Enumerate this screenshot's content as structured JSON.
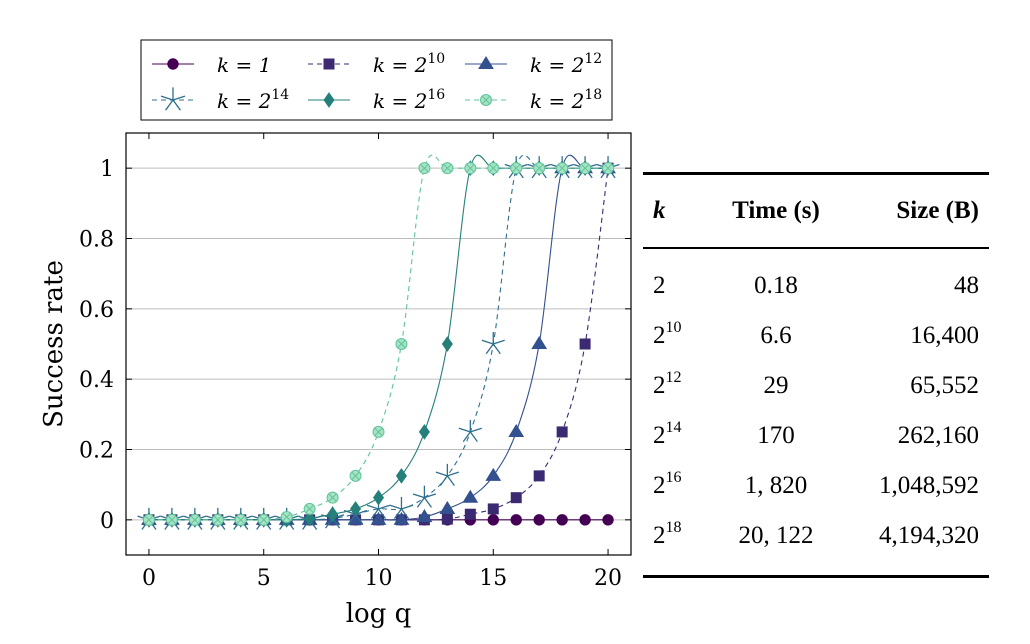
{
  "chart_data": {
    "type": "line",
    "title": "",
    "xlabel": "log q",
    "ylabel": "Success rate",
    "xlim": [
      -1,
      21
    ],
    "ylim": [
      -0.1,
      1.1
    ],
    "xticks": [
      0,
      5,
      10,
      15,
      20
    ],
    "yticks": [
      0,
      0.2,
      0.4,
      0.6,
      0.8,
      1
    ],
    "xtick_labels": [
      "0",
      "5",
      "10",
      "15",
      "20"
    ],
    "ytick_labels": [
      "0",
      "0.2",
      "0.4",
      "0.6",
      "0.8",
      "1"
    ],
    "grid": "horizontal",
    "legend_position": "above",
    "x": [
      0,
      1,
      2,
      3,
      4,
      5,
      6,
      7,
      8,
      9,
      10,
      11,
      12,
      13,
      14,
      15,
      16,
      17,
      18,
      19,
      20
    ],
    "series": [
      {
        "name": "k = 1",
        "base": "k = 1",
        "exp": "",
        "color": "#440154",
        "marker": "circle",
        "dashed": false,
        "values": [
          0,
          0,
          0,
          0,
          0,
          0,
          0,
          0,
          0,
          0,
          0,
          0,
          0,
          0,
          0,
          0,
          0,
          0,
          0,
          0,
          0
        ]
      },
      {
        "name": "k = 2^10",
        "base": "k = 2",
        "exp": "10",
        "color": "#3b2a72",
        "marker": "square",
        "dashed": true,
        "values": [
          0,
          0,
          0,
          0,
          0,
          0,
          0,
          0,
          0,
          0,
          0,
          0,
          0,
          0.002,
          0.016,
          0.031,
          0.063,
          0.125,
          0.25,
          0.5,
          1
        ]
      },
      {
        "name": "k = 2^12",
        "base": "k = 2",
        "exp": "12",
        "color": "#33508f",
        "marker": "triangle",
        "dashed": false,
        "values": [
          0,
          0,
          0,
          0,
          0,
          0,
          0,
          0,
          0,
          0,
          0,
          0,
          0.008,
          0.031,
          0.063,
          0.125,
          0.25,
          0.5,
          1,
          1,
          1
        ]
      },
      {
        "name": "k = 2^14",
        "base": "k = 2",
        "exp": "14",
        "color": "#2d6f8e",
        "marker": "star",
        "dashed": true,
        "values": [
          0,
          0,
          0,
          0,
          0,
          0,
          0,
          0,
          0.004,
          0.016,
          0.031,
          0.031,
          0.063,
          0.125,
          0.25,
          0.5,
          1,
          1,
          1,
          1,
          1
        ]
      },
      {
        "name": "k = 2^16",
        "base": "k = 2",
        "exp": "16",
        "color": "#25807a",
        "marker": "diamond",
        "dashed": false,
        "values": [
          0,
          0,
          0,
          0,
          0,
          0,
          0,
          0.004,
          0.016,
          0.031,
          0.063,
          0.125,
          0.25,
          0.5,
          1,
          1,
          1,
          1,
          1,
          1,
          1
        ]
      },
      {
        "name": "k = 2^18",
        "base": "k = 2",
        "exp": "18",
        "color": "#5ec49a",
        "marker": "circle-x",
        "dashed": true,
        "values": [
          0,
          0,
          0,
          0,
          0,
          0,
          0.008,
          0.031,
          0.063,
          0.125,
          0.25,
          0.5,
          1,
          1,
          1,
          1,
          1,
          1,
          1,
          1,
          1
        ]
      }
    ]
  },
  "table": {
    "headers": {
      "k": "k",
      "time": "Time (s)",
      "size": "Size (B)"
    },
    "rows": [
      {
        "k_base": "2",
        "k_exp": "",
        "time": "0.18",
        "size": "48"
      },
      {
        "k_base": "2",
        "k_exp": "10",
        "time": "6.6",
        "size": "16,400"
      },
      {
        "k_base": "2",
        "k_exp": "12",
        "time": "29",
        "size": "65,552"
      },
      {
        "k_base": "2",
        "k_exp": "14",
        "time": "170",
        "size": "262,160"
      },
      {
        "k_base": "2",
        "k_exp": "16",
        "time": "1, 820",
        "size": "1,048,592"
      },
      {
        "k_base": "2",
        "k_exp": "18",
        "time": "20, 122",
        "size": "4,194,320"
      }
    ]
  }
}
